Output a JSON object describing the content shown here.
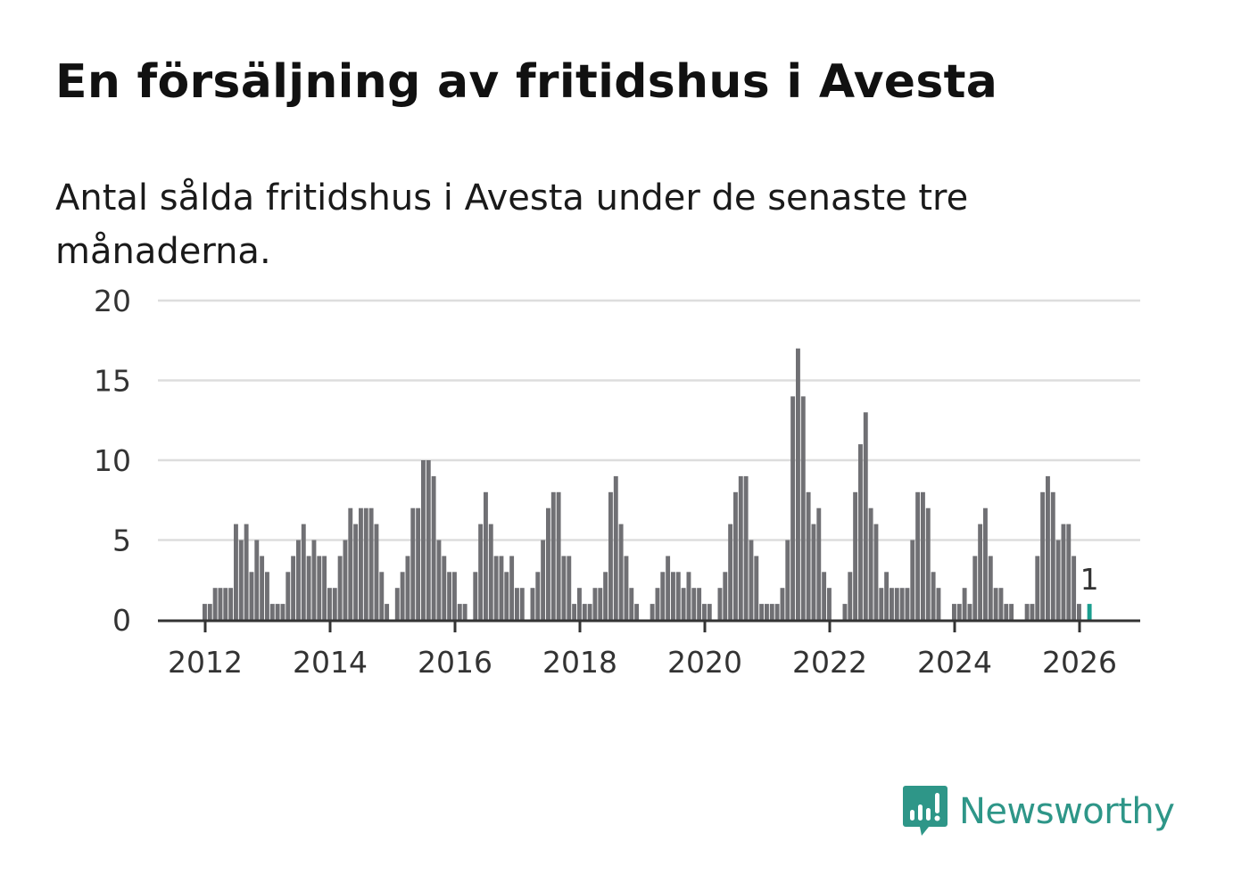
{
  "title": "En försäljning av fritidshus i Avesta",
  "subtitle": "Antal sålda fritidshus i Avesta under de senaste tre månaderna.",
  "brand": "Newsworthy",
  "colors": {
    "bar": "#707074",
    "highlight": "#1a9e8f",
    "grid": "#dddddd",
    "axis": "#333333",
    "brand": "#2e9688"
  },
  "chart_data": {
    "type": "bar",
    "title": "En försäljning av fritidshus i Avesta",
    "subtitle": "Antal sålda fritidshus i Avesta under de senaste tre månaderna.",
    "xlabel": "",
    "ylabel": "",
    "ylim": [
      0,
      20
    ],
    "yticks": [
      "0",
      "5",
      "10",
      "15",
      "20"
    ],
    "xticks": [
      "2012",
      "2014",
      "2016",
      "2018",
      "2020",
      "2022",
      "2024",
      "2026"
    ],
    "grid": true,
    "start": "2012-01",
    "frequency": "monthly",
    "values": [
      1,
      1,
      2,
      2,
      2,
      2,
      6,
      5,
      6,
      3,
      5,
      4,
      3,
      1,
      1,
      1,
      3,
      4,
      5,
      6,
      4,
      5,
      4,
      4,
      2,
      2,
      4,
      5,
      7,
      6,
      7,
      7,
      7,
      6,
      3,
      1,
      0,
      2,
      3,
      4,
      7,
      7,
      10,
      10,
      9,
      5,
      4,
      3,
      3,
      1,
      1,
      0,
      3,
      6,
      8,
      6,
      4,
      4,
      3,
      4,
      2,
      2,
      0,
      2,
      3,
      5,
      7,
      8,
      8,
      4,
      4,
      1,
      2,
      1,
      1,
      2,
      2,
      3,
      8,
      9,
      6,
      4,
      2,
      1,
      0,
      0,
      1,
      2,
      3,
      4,
      3,
      3,
      2,
      3,
      2,
      2,
      1,
      1,
      0,
      2,
      3,
      6,
      8,
      9,
      9,
      5,
      4,
      1,
      1,
      1,
      1,
      2,
      5,
      14,
      17,
      14,
      8,
      6,
      7,
      3,
      2,
      0,
      0,
      1,
      3,
      8,
      11,
      13,
      7,
      6,
      2,
      3,
      2,
      2,
      2,
      2,
      5,
      8,
      8,
      7,
      3,
      2,
      0,
      0,
      1,
      1,
      2,
      1,
      4,
      6,
      7,
      4,
      2,
      2,
      1,
      1,
      0,
      0,
      1,
      1,
      4,
      8,
      9,
      8,
      5,
      6,
      6,
      4,
      1,
      0,
      1
    ],
    "highlight_last": true,
    "annotation": "1"
  }
}
